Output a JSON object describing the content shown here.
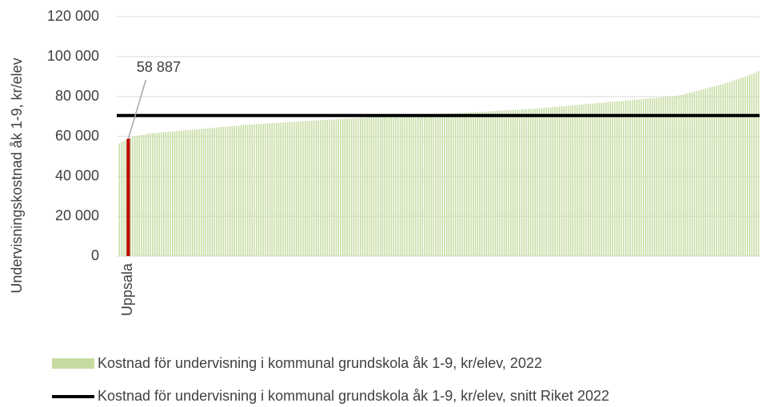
{
  "chart_data": {
    "type": "bar",
    "ylabel": "Undervisningskostnad åk 1-9, kr/elev",
    "categories": [
      null,
      null,
      null,
      null,
      "Uppsala",
      null,
      null,
      null,
      null,
      null,
      null,
      null,
      null,
      null,
      null,
      null,
      null,
      null,
      null,
      null,
      null,
      null,
      null,
      null,
      null,
      null,
      null,
      null,
      null,
      null,
      null,
      null,
      null,
      null,
      null,
      null,
      null,
      null,
      null,
      null,
      null,
      null,
      null,
      null,
      null,
      null,
      null,
      null,
      null,
      null,
      null,
      null,
      null,
      null,
      null,
      null,
      null,
      null,
      null,
      null,
      null,
      null,
      null,
      null,
      null,
      null,
      null,
      null,
      null,
      null,
      null,
      null,
      null,
      null,
      null,
      null,
      null,
      null,
      null,
      null,
      null,
      null,
      null,
      null,
      null,
      null,
      null,
      null,
      null,
      null,
      null,
      null,
      null,
      null,
      null,
      null,
      null,
      null,
      null,
      null,
      null,
      null,
      null,
      null,
      null,
      null,
      null,
      null,
      null,
      null,
      null,
      null,
      null,
      null,
      null,
      null,
      null,
      null,
      null,
      null,
      null,
      null,
      null,
      null,
      null,
      null,
      null,
      null,
      null,
      null,
      null,
      null,
      null,
      null,
      null,
      null,
      null,
      null,
      null,
      null,
      null,
      null,
      null,
      null,
      null,
      null,
      null,
      null,
      null,
      null,
      null,
      null,
      null,
      null,
      null,
      null,
      null,
      null,
      null,
      null,
      null,
      null,
      null,
      null,
      null,
      null,
      null,
      null,
      null,
      null,
      null,
      null,
      null,
      null,
      null,
      null,
      null,
      null,
      null,
      null,
      null,
      null,
      null,
      null,
      null,
      null,
      null,
      null,
      null,
      null,
      null,
      null,
      null,
      null,
      null,
      null,
      null,
      null,
      null,
      null,
      null,
      null,
      null,
      null,
      null,
      null,
      null,
      null,
      null,
      null,
      null,
      null,
      null,
      null,
      null,
      null,
      null,
      null,
      null,
      null,
      null,
      null,
      null,
      null,
      null,
      null,
      null,
      null,
      null,
      null,
      null,
      null,
      null,
      null,
      null,
      null,
      null,
      null,
      null,
      null,
      null,
      null,
      null,
      null,
      null,
      null,
      null,
      null,
      null,
      null,
      null,
      null,
      null,
      null,
      null,
      null,
      null,
      null,
      null,
      null,
      null,
      null,
      null,
      null,
      null,
      null,
      null,
      null,
      null,
      null,
      null,
      null,
      null,
      null,
      null,
      null,
      null,
      null,
      null,
      null,
      null,
      null,
      null,
      null,
      null,
      null,
      null,
      null,
      null,
      null
    ],
    "series": [
      {
        "name": "Kostnad för undervisning i kommunal grundskola åk 1-9, kr/elev, 2022",
        "color": "#c5dba0",
        "values": [
          56500,
          57200,
          57800,
          58300,
          58887,
          59500,
          59800,
          60100,
          60300,
          60500,
          60700,
          60900,
          61100,
          61300,
          61500,
          61600,
          61700,
          61800,
          61900,
          62000,
          62100,
          62200,
          62300,
          62400,
          62500,
          62600,
          62700,
          62800,
          62900,
          63000,
          63100,
          63200,
          63300,
          63400,
          63500,
          63600,
          63700,
          63800,
          63900,
          64000,
          64100,
          64200,
          64300,
          64400,
          64500,
          64600,
          64700,
          64800,
          64900,
          65000,
          65100,
          65200,
          65300,
          65400,
          65500,
          65600,
          65700,
          65800,
          65900,
          66000,
          66100,
          66150,
          66200,
          66300,
          66350,
          66400,
          66500,
          66550,
          66600,
          66700,
          66750,
          66800,
          66900,
          66950,
          67000,
          67100,
          67150,
          67200,
          67300,
          67350,
          67400,
          67500,
          67550,
          67600,
          67700,
          67750,
          67800,
          67900,
          67950,
          68000,
          68100,
          68150,
          68200,
          68300,
          68350,
          68400,
          68500,
          68550,
          68600,
          68700,
          68750,
          68800,
          68900,
          68950,
          69000,
          69100,
          69150,
          69200,
          69300,
          69350,
          69400,
          69500,
          69550,
          69600,
          69700,
          69750,
          69800,
          69900,
          69950,
          70000,
          70050,
          70100,
          70150,
          70200,
          70250,
          70300,
          70350,
          70400,
          70450,
          70500,
          70550,
          70600,
          70650,
          70700,
          70750,
          70800,
          70850,
          70900,
          70950,
          71000,
          71050,
          71100,
          71150,
          71200,
          71250,
          71300,
          71350,
          71400,
          71450,
          71500,
          71550,
          71600,
          71650,
          71700,
          71750,
          71800,
          71850,
          71900,
          71950,
          72000,
          72100,
          72150,
          72200,
          72300,
          72350,
          72400,
          72500,
          72550,
          72600,
          72700,
          72750,
          72800,
          72900,
          72950,
          73000,
          73100,
          73150,
          73200,
          73300,
          73350,
          73400,
          73500,
          73550,
          73600,
          73700,
          73750,
          73800,
          73900,
          73950,
          74000,
          74100,
          74200,
          74300,
          74400,
          74500,
          74600,
          74700,
          74800,
          74900,
          75000,
          75100,
          75200,
          75300,
          75400,
          75500,
          75600,
          75700,
          75800,
          75900,
          76000,
          76100,
          76200,
          76300,
          76400,
          76500,
          76600,
          76700,
          76800,
          76900,
          77000,
          77100,
          77200,
          77300,
          77400,
          77500,
          77600,
          77700,
          77800,
          77900,
          78000,
          78100,
          78200,
          78300,
          78400,
          78500,
          78600,
          78700,
          78800,
          78900,
          79000,
          79100,
          79200,
          79300,
          79400,
          79500,
          79600,
          79700,
          79800,
          79900,
          80000,
          80100,
          80200,
          80400,
          80600,
          80800,
          81000,
          81300,
          81600,
          81900,
          82200,
          82500,
          82800,
          83100,
          83400,
          83700,
          84000,
          84300,
          84600,
          84900,
          85200,
          85500,
          85800,
          86100,
          86400,
          86700,
          87000,
          87300,
          87700,
          88100,
          88500,
          88900,
          89300,
          89700,
          90100,
          90500,
          90900,
          91300,
          91700,
          92200,
          92800
        ]
      }
    ],
    "highlight_category": "Uppsala",
    "highlight_color": "#c00000",
    "annotations": [
      {
        "text": "58 887",
        "category": "Uppsala"
      }
    ],
    "reference_lines": [
      {
        "name": "Kostnad för undervisning i kommunal grundskola åk 1-9, kr/elev, snitt Riket 2022",
        "value": 70500,
        "color": "#000000"
      }
    ],
    "ylim": [
      0,
      120000
    ],
    "yticks": [
      0,
      {
        "value": 20000,
        "label": "20 000"
      },
      {
        "value": 40000,
        "label": "40 000"
      },
      {
        "value": 60000,
        "label": "60 000"
      },
      {
        "value": 80000,
        "label": "80 000"
      },
      {
        "value": 100000,
        "label": "100 000"
      },
      {
        "value": 120000,
        "label": "120 000"
      }
    ],
    "grid": true
  }
}
